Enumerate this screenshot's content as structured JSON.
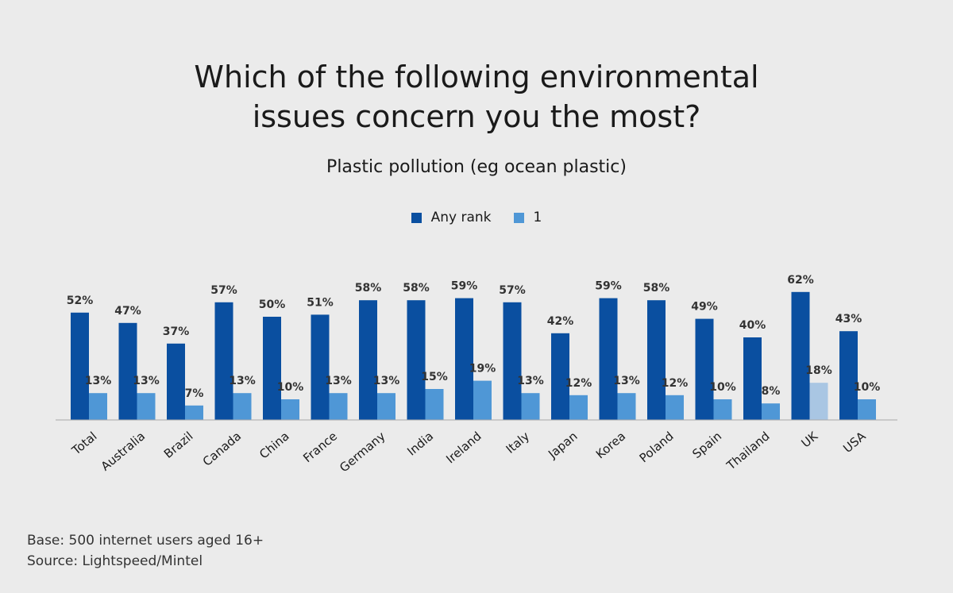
{
  "chart_data": {
    "type": "bar",
    "title_lines": [
      "Which of the following environmental",
      "issues concern you the most?"
    ],
    "subtitle": "Plastic pollution (eg ocean plastic)",
    "categories": [
      "Total",
      "Australia",
      "Brazil",
      "Canada",
      "China",
      "France",
      "Germany",
      "India",
      "Ireland",
      "Italy",
      "Japan",
      "Korea",
      "Poland",
      "Spain",
      "Thailand",
      "UK",
      "USA"
    ],
    "series": [
      {
        "name": "Any rank",
        "color": "#0a4fa0",
        "values": [
          52,
          47,
          37,
          57,
          50,
          51,
          58,
          58,
          59,
          57,
          42,
          59,
          58,
          49,
          40,
          62,
          43
        ],
        "labels": [
          "52%",
          "47%",
          "37%",
          "57%",
          "50%",
          "51%",
          "58%",
          "58%",
          "59%",
          "57%",
          "42%",
          "59%",
          "58%",
          "49%",
          "40%",
          "62%",
          "43%"
        ]
      },
      {
        "name": "1",
        "color": "#4f97d6",
        "highlight_color": "#a9c6e3",
        "highlight_index": 15,
        "values": [
          13,
          13,
          7,
          13,
          10,
          13,
          13,
          15,
          19,
          13,
          12,
          13,
          12,
          10,
          8,
          18,
          10
        ],
        "labels": [
          "13%",
          "13%",
          "7%",
          "13%",
          "10%",
          "13%",
          "13%",
          "15%",
          "19%",
          "13%",
          "12%",
          "13%",
          "12%",
          "10%",
          "8%",
          "18%",
          "10%"
        ]
      }
    ],
    "ylim": [
      0,
      100
    ],
    "grid": false,
    "legend_position": "top-center"
  },
  "footer": {
    "base": "Base: 500 internet users aged 16+",
    "source": "Source: Lightspeed/Mintel"
  }
}
